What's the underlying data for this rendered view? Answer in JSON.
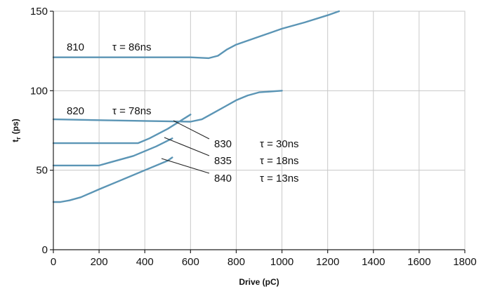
{
  "chart_data": {
    "type": "line",
    "title": "",
    "xlabel": "Drive (pC)",
    "ylabel_main": "t",
    "ylabel_sub": "r",
    "ylabel_unit": "(ps)",
    "xlim": [
      0,
      1800
    ],
    "ylim": [
      0,
      150
    ],
    "x_ticks": [
      0,
      200,
      400,
      600,
      800,
      1000,
      1200,
      1400,
      1600,
      1800
    ],
    "y_ticks": [
      0,
      50,
      100,
      150
    ],
    "grid": true,
    "line_color": "#5b95b5",
    "series": [
      {
        "name": "810",
        "tau": "τ = 86ns",
        "points": [
          [
            0,
            121
          ],
          [
            200,
            121
          ],
          [
            400,
            121
          ],
          [
            600,
            121
          ],
          [
            680,
            120.5
          ],
          [
            720,
            122
          ],
          [
            760,
            126
          ],
          [
            800,
            129
          ],
          [
            900,
            134
          ],
          [
            1000,
            139
          ],
          [
            1100,
            143
          ],
          [
            1200,
            147.5
          ],
          [
            1250,
            150
          ]
        ]
      },
      {
        "name": "820",
        "tau": "τ = 78ns",
        "points": [
          [
            0,
            82
          ],
          [
            200,
            81.5
          ],
          [
            400,
            81
          ],
          [
            600,
            80.5
          ],
          [
            650,
            82
          ],
          [
            700,
            86
          ],
          [
            750,
            90
          ],
          [
            800,
            94
          ],
          [
            850,
            97
          ],
          [
            900,
            99
          ],
          [
            1000,
            100
          ]
        ]
      },
      {
        "name": "830",
        "tau": "τ = 30ns",
        "points": [
          [
            0,
            67
          ],
          [
            200,
            67
          ],
          [
            370,
            67
          ],
          [
            420,
            70
          ],
          [
            500,
            76
          ],
          [
            600,
            85
          ]
        ]
      },
      {
        "name": "835",
        "tau": "τ = 18ns",
        "points": [
          [
            0,
            53
          ],
          [
            200,
            53
          ],
          [
            250,
            55
          ],
          [
            350,
            59
          ],
          [
            450,
            65
          ],
          [
            520,
            70
          ]
        ]
      },
      {
        "name": "840",
        "tau": "τ = 13ns",
        "points": [
          [
            0,
            30
          ],
          [
            30,
            30
          ],
          [
            70,
            31
          ],
          [
            120,
            33
          ],
          [
            200,
            38
          ],
          [
            300,
            44
          ],
          [
            400,
            50
          ],
          [
            500,
            56
          ],
          [
            520,
            58
          ]
        ]
      }
    ]
  }
}
